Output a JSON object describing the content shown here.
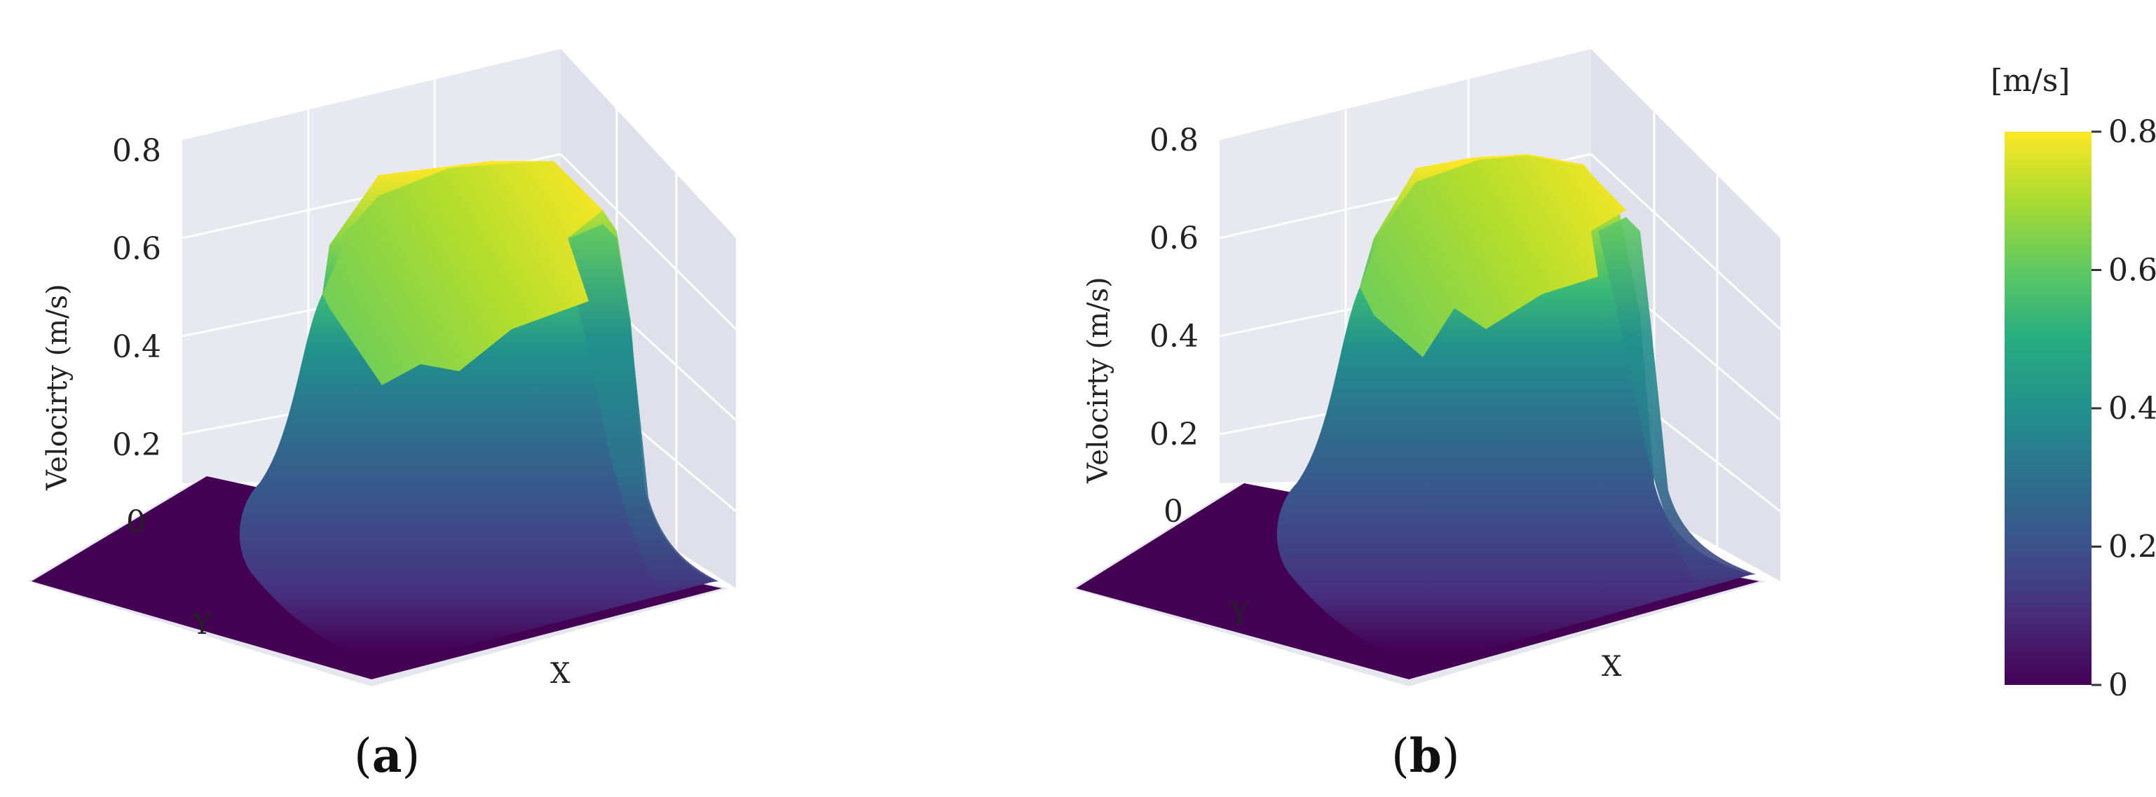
{
  "chart_data": [
    {
      "type": "surface3d",
      "panel_label": "a",
      "zlabel": "Velocirty (m/s)",
      "xlabel": "X",
      "ylabel": "Y",
      "zticks": [
        "0",
        "0.2",
        "0.4",
        "0.6",
        "0.8"
      ],
      "zlim": [
        0,
        0.8
      ],
      "peak_velocity": 0.78
    },
    {
      "type": "surface3d",
      "panel_label": "b",
      "zlabel": "Velocirty (m/s)",
      "xlabel": "X",
      "ylabel": "Y",
      "zticks": [
        "0",
        "0.2",
        "0.4",
        "0.6",
        "0.8"
      ],
      "zlim": [
        0,
        0.8
      ],
      "peak_velocity": 0.78
    }
  ],
  "colorbar": {
    "unit": "[m/s]",
    "ticks": [
      "0.8",
      "0.6",
      "0.4",
      "0.2",
      "0"
    ],
    "range": [
      0,
      0.8
    ],
    "colors": [
      "#440154",
      "#3b528b",
      "#21918c",
      "#5ec962",
      "#fde725"
    ]
  }
}
